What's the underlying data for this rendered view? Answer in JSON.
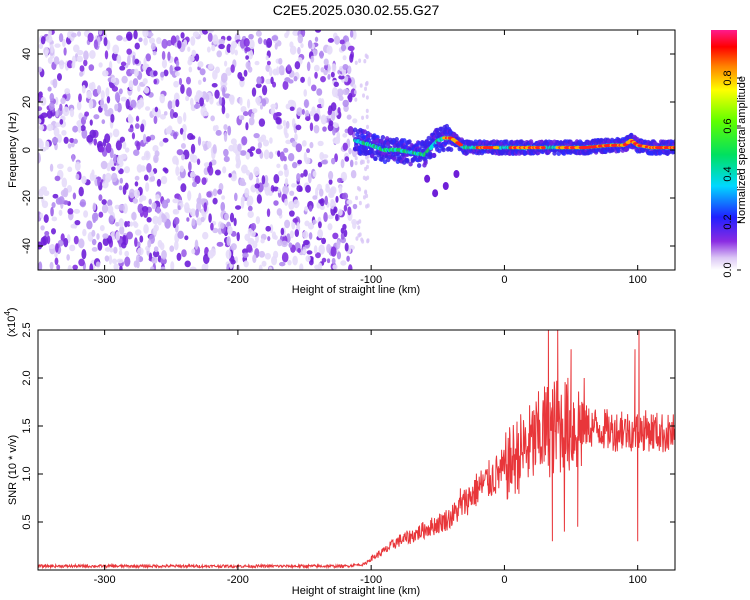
{
  "title": "C2E5.2025.030.02.55.G27",
  "chart_data": [
    {
      "type": "heatmap",
      "xlabel": "Height of straight line (km)",
      "ylabel": "Frequency (Hz)",
      "xlim": [
        -350,
        128
      ],
      "ylim": [
        -50,
        50
      ],
      "xticks": [
        -300,
        -200,
        -100,
        0,
        100
      ],
      "yticks": [
        -40,
        -20,
        0,
        20,
        40
      ],
      "colorbar": {
        "label": "Normalized spectral amplitude",
        "range": [
          0,
          1
        ],
        "ticks": [
          "0.0",
          "0.2",
          "0.4",
          "0.6",
          "0.8"
        ],
        "tick_values": [
          0,
          0.2,
          0.4,
          0.6,
          0.8
        ]
      },
      "regions": [
        {
          "x_range": [
            -350,
            -112
          ],
          "y_range": [
            -50,
            50
          ],
          "amplitude": "low, broadband noise"
        },
        {
          "x_range": [
            -112,
            128
          ],
          "y_range": [
            -2,
            6
          ],
          "amplitude": "high, narrow line near 0-5 Hz"
        }
      ],
      "ridge": {
        "x": [
          -112,
          -100,
          -90,
          -80,
          -70,
          -60,
          -50,
          -45,
          -40,
          -30,
          -20,
          -10,
          0,
          20,
          40,
          60,
          80,
          90,
          95,
          100,
          110,
          128
        ],
        "y": [
          4,
          2,
          0,
          0,
          -1,
          -2,
          4,
          5,
          5,
          1,
          1,
          1,
          1,
          1,
          1,
          1,
          2,
          2,
          4,
          2,
          1,
          1
        ]
      }
    },
    {
      "type": "line",
      "xlabel": "Height of straight line (km)",
      "ylabel": "SNR (10 * v/v)",
      "y_multiplier": "(x10",
      "y_multiplier_exp": "4",
      "y_multiplier_close": ")",
      "xlim": [
        -350,
        128
      ],
      "ylim": [
        0,
        2.5
      ],
      "xticks": [
        -300,
        -200,
        -100,
        0,
        100
      ],
      "yticks": [
        0.5,
        1.0,
        1.5,
        2.0,
        2.5
      ],
      "ytick_labels": [
        "0.5",
        "1.0",
        "1.5",
        "2.0",
        "2.5"
      ],
      "color": "#e8363a",
      "envelope": {
        "x": [
          -350,
          -300,
          -200,
          -120,
          -105,
          -100,
          -90,
          -80,
          -70,
          -60,
          -50,
          -40,
          -30,
          -20,
          -10,
          0,
          10,
          20,
          30,
          40,
          50,
          60,
          70,
          80,
          90,
          100,
          110,
          120,
          128
        ],
        "y": [
          0.04,
          0.04,
          0.04,
          0.04,
          0.06,
          0.12,
          0.2,
          0.3,
          0.35,
          0.42,
          0.48,
          0.55,
          0.7,
          0.85,
          0.95,
          1.05,
          1.2,
          1.3,
          1.45,
          1.5,
          1.5,
          1.5,
          1.48,
          1.45,
          1.45,
          1.45,
          1.45,
          1.42,
          1.42
        ]
      },
      "spikes": [
        {
          "x": -33,
          "y": 0.85
        },
        {
          "x": 33,
          "y": 2.5
        },
        {
          "x": 36,
          "y": 0.3
        },
        {
          "x": 40,
          "y": 2.5
        },
        {
          "x": 45,
          "y": 0.4
        },
        {
          "x": 50,
          "y": 2.3
        },
        {
          "x": 55,
          "y": 0.45
        },
        {
          "x": 88,
          "y": 1.65
        },
        {
          "x": 98,
          "y": 2.3
        },
        {
          "x": 100,
          "y": 0.3
        },
        {
          "x": 101,
          "y": 2.5
        }
      ]
    }
  ]
}
